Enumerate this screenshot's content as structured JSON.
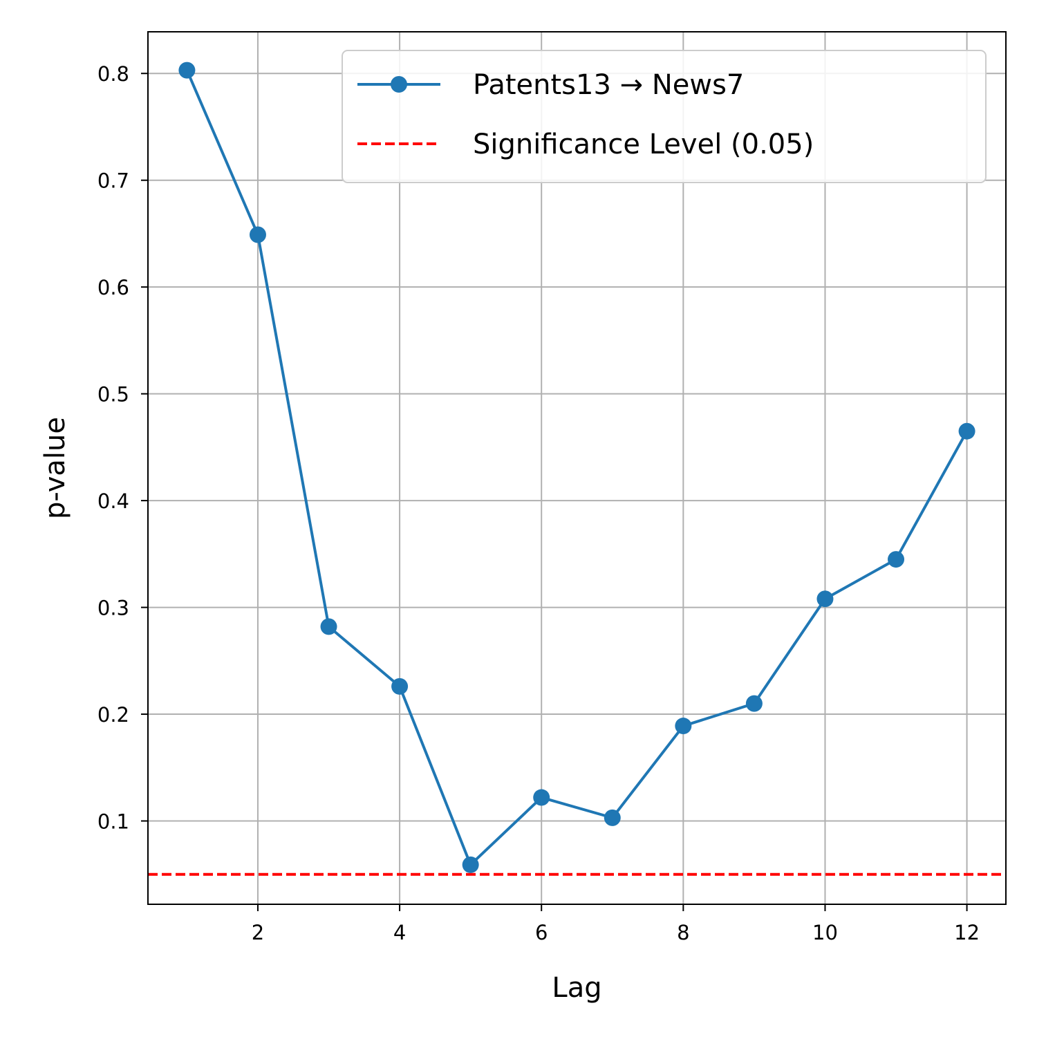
{
  "chart_data": {
    "type": "line",
    "title": "",
    "xlabel": "Lag",
    "ylabel": "p-value",
    "xlim": [
      0.45,
      12.55
    ],
    "ylim": [
      0.022,
      0.839
    ],
    "xticks": [
      2,
      4,
      6,
      8,
      10,
      12
    ],
    "yticks": [
      0.1,
      0.2,
      0.3,
      0.4,
      0.5,
      0.6,
      0.7,
      0.8
    ],
    "xtick_labels": [
      "2",
      "4",
      "6",
      "8",
      "10",
      "12"
    ],
    "ytick_labels": [
      "0.1",
      "0.2",
      "0.3",
      "0.4",
      "0.5",
      "0.6",
      "0.7",
      "0.8"
    ],
    "grid": true,
    "legend_position": "top-right",
    "series": [
      {
        "name": "Patents13 → News7",
        "color": "#1f77b4",
        "marker": "circle",
        "x": [
          1,
          2,
          3,
          4,
          5,
          6,
          7,
          8,
          9,
          10,
          11,
          12
        ],
        "y": [
          0.803,
          0.649,
          0.282,
          0.226,
          0.059,
          0.122,
          0.103,
          0.189,
          0.21,
          0.308,
          0.345,
          0.465
        ]
      }
    ],
    "reference_lines": [
      {
        "name": "Significance Level (0.05)",
        "orientation": "horizontal",
        "value": 0.05,
        "color": "#ff0000",
        "style": "dashed"
      }
    ]
  }
}
